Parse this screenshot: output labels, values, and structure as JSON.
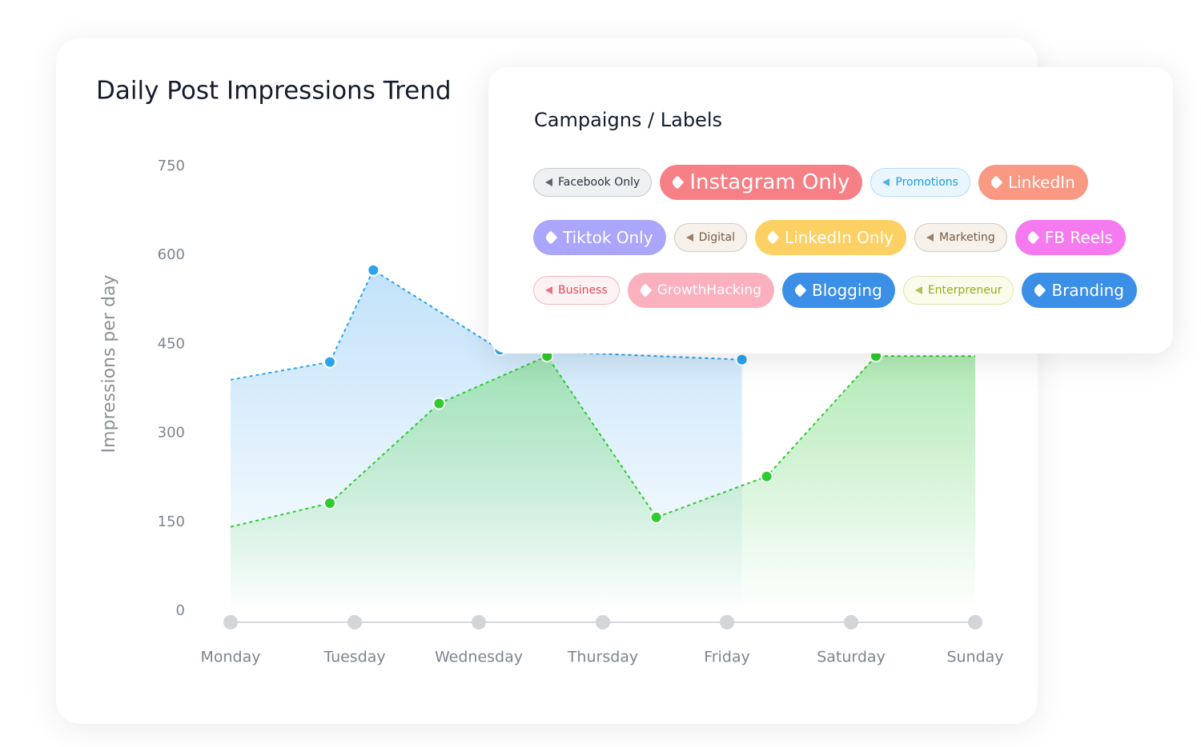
{
  "chart_data": {
    "type": "line",
    "title": "Daily Post Impressions Trend",
    "y_label": "Impressions per day",
    "xlim": [
      0,
      6
    ],
    "xticks": [
      {
        "value": 0,
        "label": "Monday"
      },
      {
        "value": 1,
        "label": "Tuesday"
      },
      {
        "value": 2,
        "label": "Wednesday"
      },
      {
        "value": 3,
        "label": "Thursday"
      },
      {
        "value": 4,
        "label": "Friday"
      },
      {
        "value": 5,
        "label": "Saturday"
      },
      {
        "value": 6,
        "label": "Sunday"
      }
    ],
    "ylim": [
      0,
      750
    ],
    "yticks": [
      0,
      150,
      300,
      450,
      600,
      750
    ],
    "series": [
      {
        "color": "#2aa3ef",
        "x": [
          0,
          0.8,
          1.15,
          2.17,
          4.12
        ],
        "values": [
          390,
          420,
          575,
          441,
          424
        ]
      },
      {
        "color": "#2ecc2e",
        "x": [
          0,
          0.8,
          1.68,
          2.55,
          3.43,
          4.32,
          5.2,
          6
        ],
        "values": [
          142,
          182,
          350,
          430,
          158,
          227,
          430,
          430
        ]
      }
    ]
  },
  "labels": {
    "title": "Campaigns / Labels",
    "items": [
      "Facebook Only",
      "Instagram Only",
      "Promotions",
      "LinkedIn",
      "Tiktok Only",
      "Digital",
      "LinkedIn Only",
      "Marketing",
      "FB Reels",
      "Business",
      "GrowthHacking",
      "Blogging",
      "Enterpreneur",
      "Branding"
    ]
  }
}
